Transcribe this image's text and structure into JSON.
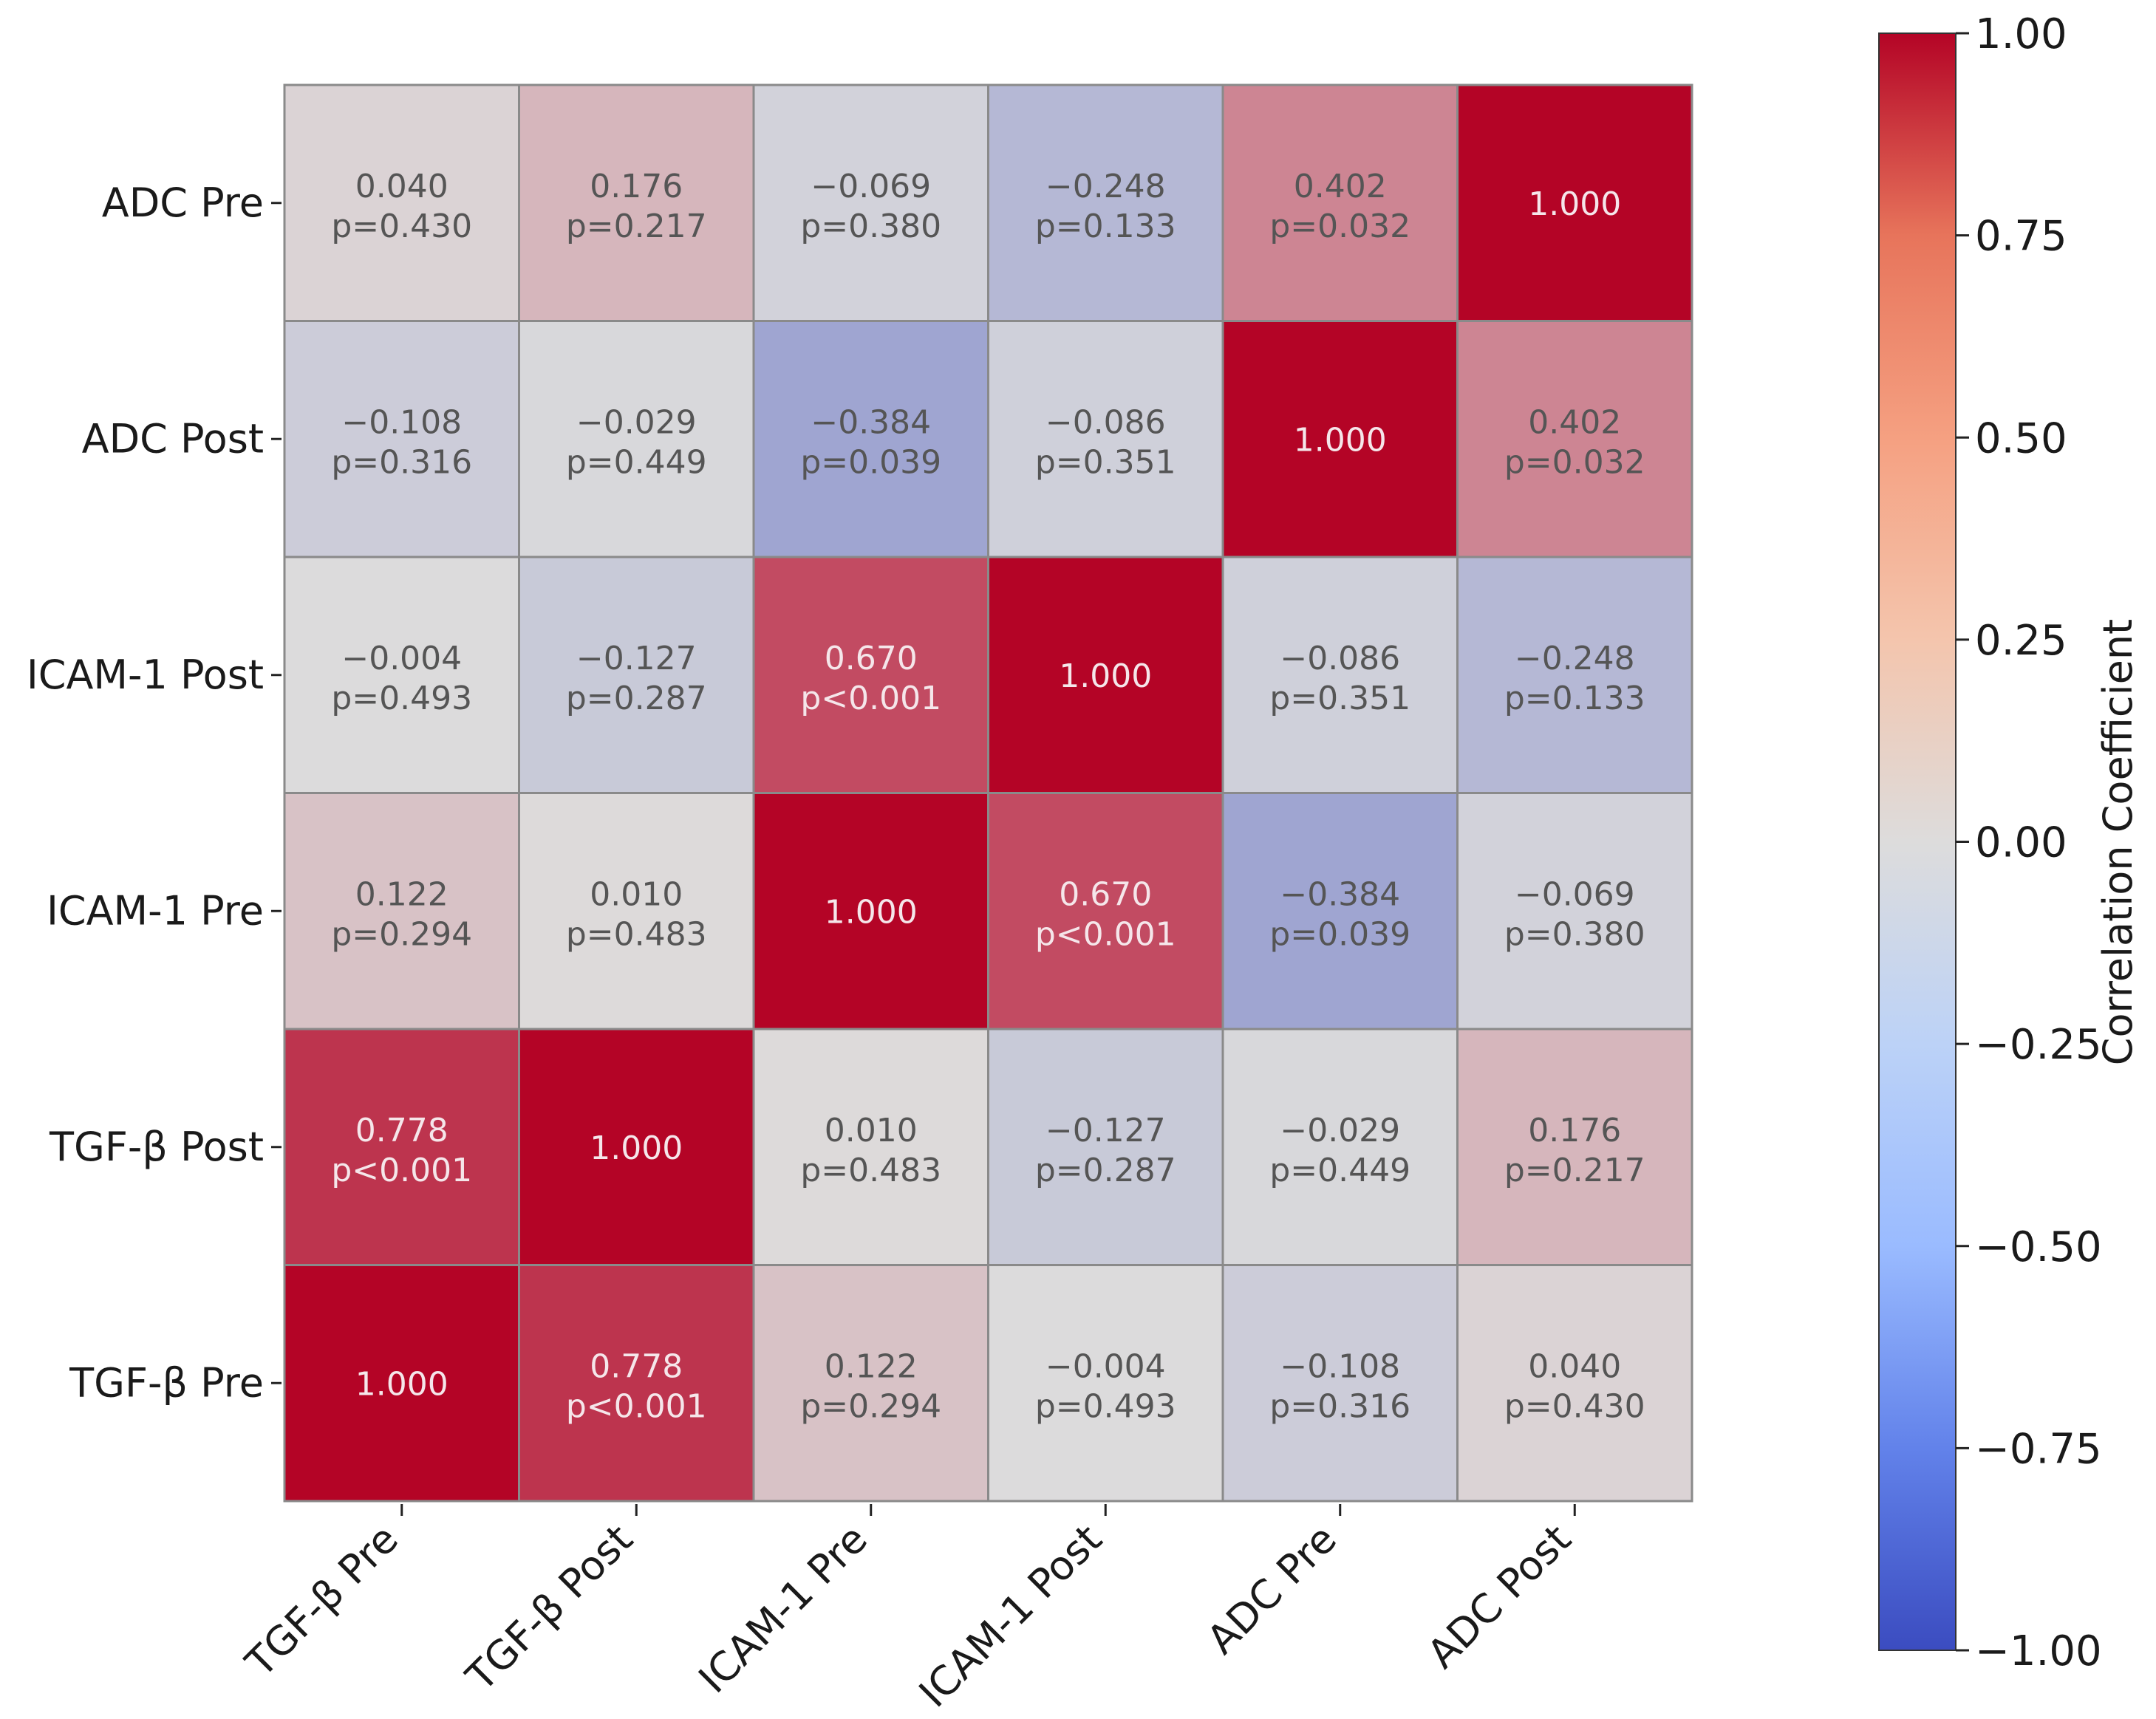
{
  "chart_data": {
    "type": "heatmap",
    "title": "",
    "row_labels": [
      "ADC Pre",
      "ADC Post",
      "ICAM-1 Post",
      "ICAM-1 Pre",
      "TGF-β Post",
      "TGF-β Pre"
    ],
    "col_labels": [
      "TGF-β Pre",
      "TGF-β Post",
      "ICAM-1 Pre",
      "ICAM-1 Post",
      "ADC Pre",
      "ADC Post"
    ],
    "values": [
      [
        0.04,
        0.176,
        -0.069,
        -0.248,
        0.402,
        1.0
      ],
      [
        -0.108,
        -0.029,
        -0.384,
        -0.086,
        1.0,
        0.402
      ],
      [
        -0.004,
        -0.127,
        0.67,
        1.0,
        -0.086,
        -0.248
      ],
      [
        0.122,
        0.01,
        1.0,
        0.67,
        -0.384,
        -0.069
      ],
      [
        0.778,
        1.0,
        0.01,
        -0.127,
        -0.029,
        0.176
      ],
      [
        1.0,
        0.778,
        0.122,
        -0.004,
        -0.108,
        0.04
      ]
    ],
    "value_labels": [
      [
        "0.040",
        "0.176",
        "−0.069",
        "−0.248",
        "0.402",
        "1.000"
      ],
      [
        "−0.108",
        "−0.029",
        "−0.384",
        "−0.086",
        "1.000",
        "0.402"
      ],
      [
        "−0.004",
        "−0.127",
        "0.670",
        "1.000",
        "−0.086",
        "−0.248"
      ],
      [
        "0.122",
        "0.010",
        "1.000",
        "0.670",
        "−0.384",
        "−0.069"
      ],
      [
        "0.778",
        "1.000",
        "0.010",
        "−0.127",
        "−0.029",
        "0.176"
      ],
      [
        "1.000",
        "0.778",
        "0.122",
        "−0.004",
        "−0.108",
        "0.040"
      ]
    ],
    "p_labels": [
      [
        "p=0.430",
        "p=0.217",
        "p=0.380",
        "p=0.133",
        "p=0.032",
        ""
      ],
      [
        "p=0.316",
        "p=0.449",
        "p=0.039",
        "p=0.351",
        "",
        "p=0.032"
      ],
      [
        "p=0.493",
        "p=0.287",
        "p<0.001",
        "",
        "p=0.351",
        "p=0.133"
      ],
      [
        "p=0.294",
        "p=0.483",
        "",
        "p<0.001",
        "p=0.039",
        "p=0.380"
      ],
      [
        "p<0.001",
        "",
        "p=0.483",
        "p=0.287",
        "p=0.449",
        "p=0.217"
      ],
      [
        "",
        "p<0.001",
        "p=0.294",
        "p=0.493",
        "p=0.316",
        "p=0.430"
      ]
    ],
    "colorbar": {
      "label": "Correlation Coefficient",
      "range": [
        -1.0,
        1.0
      ],
      "ticks": [
        1.0,
        0.75,
        0.5,
        0.25,
        0.0,
        -0.25,
        -0.5,
        -0.75,
        -1.0
      ],
      "tick_labels": [
        "1.00",
        "0.75",
        "0.50",
        "0.25",
        "0.00",
        "−0.25",
        "−0.50",
        "−0.75",
        "−1.00"
      ],
      "colormap": "coolwarm",
      "color_stops": [
        "#3b4cc0",
        "#dddcdc",
        "#b40426"
      ]
    }
  }
}
